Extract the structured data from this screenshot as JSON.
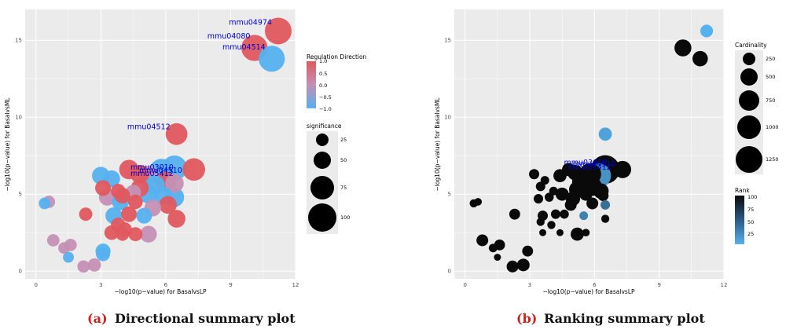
{
  "colors": {
    "panel_bg": "#ebebeb",
    "grid": "#ffffff",
    "red": "#e0595f",
    "blue": "#56b1ef",
    "mid": "#c490b4",
    "caption_red": "#cc2222",
    "rank_dark": "#0a0a0a",
    "rank_light": "#56b1ef",
    "label_blue": "#0000cc"
  },
  "captions": [
    {
      "tag": "(a)",
      "text": "Directional summary plot"
    },
    {
      "tag": "(b)",
      "text": "Ranking summary plot"
    }
  ],
  "legends": {
    "regulation": {
      "title": "Regulation Direction",
      "labels": [
        "1.0",
        "0.5",
        "0.0",
        "−0.5",
        "−1.0"
      ]
    },
    "significance": {
      "title": "significance",
      "labels": [
        "25",
        "50",
        "75",
        "100"
      ]
    },
    "cardinality": {
      "title": "Cardinality",
      "labels": [
        "250",
        "500",
        "750",
        "1000",
        "1250"
      ]
    },
    "rank": {
      "title": "Rank",
      "labels": [
        "100",
        "75",
        "50",
        "25"
      ]
    }
  },
  "chart_data": [
    {
      "type": "scatter",
      "title": "",
      "xlabel": "−log10(p−value) for BasalvsLP",
      "ylabel": "−log10(p−value) for BasalvsML",
      "xlim": [
        -0.5,
        12
      ],
      "ylim": [
        -0.5,
        17
      ],
      "xticks": [
        "0",
        "3",
        "6",
        "9",
        "12"
      ],
      "yticks": [
        "0",
        "5",
        "10",
        "15"
      ],
      "size_by": "significance",
      "color_by": "Regulation Direction",
      "labels": [
        {
          "text": "mmu04974",
          "x": 11.2,
          "y": 15.6
        },
        {
          "text": "mmu04080",
          "x": 10.2,
          "y": 14.7
        },
        {
          "text": "mmu04514",
          "x": 10.9,
          "y": 14.0
        },
        {
          "text": "mmu04512",
          "x": 6.5,
          "y": 8.8
        },
        {
          "text": "mmu03010",
          "x": 5.8,
          "y": 6.8
        },
        {
          "text": "mmu04510",
          "x": 6.2,
          "y": 6.6
        },
        {
          "text": "mmu05412",
          "x": 5.8,
          "y": 6.4
        }
      ],
      "points": [
        {
          "x": 11.2,
          "y": 15.6,
          "s": 100,
          "d": 1.0
        },
        {
          "x": 10.1,
          "y": 14.5,
          "s": 95,
          "d": 1.0
        },
        {
          "x": 10.9,
          "y": 13.8,
          "s": 95,
          "d": -1.0
        },
        {
          "x": 6.5,
          "y": 8.9,
          "s": 60,
          "d": 1.0
        },
        {
          "x": 7.3,
          "y": 6.6,
          "s": 65,
          "d": 1.0
        },
        {
          "x": 6.4,
          "y": 6.7,
          "s": 85,
          "d": -1.0
        },
        {
          "x": 5.8,
          "y": 6.5,
          "s": 80,
          "d": -1.0
        },
        {
          "x": 4.3,
          "y": 6.6,
          "s": 45,
          "d": 1.0
        },
        {
          "x": 4.8,
          "y": 6.3,
          "s": 40,
          "d": 1.0
        },
        {
          "x": 5.2,
          "y": 6.2,
          "s": 45,
          "d": 0.0
        },
        {
          "x": 6.0,
          "y": 5.8,
          "s": 50,
          "d": 1.0
        },
        {
          "x": 5.5,
          "y": 5.6,
          "s": 45,
          "d": -1.0
        },
        {
          "x": 6.4,
          "y": 5.7,
          "s": 40,
          "d": 0.0
        },
        {
          "x": 3.0,
          "y": 6.2,
          "s": 35,
          "d": -1.0
        },
        {
          "x": 3.5,
          "y": 6.0,
          "s": 30,
          "d": -1.0
        },
        {
          "x": 4.8,
          "y": 5.4,
          "s": 35,
          "d": 1.0
        },
        {
          "x": 5.2,
          "y": 5.0,
          "s": 40,
          "d": -1.0
        },
        {
          "x": 4.5,
          "y": 5.1,
          "s": 25,
          "d": 0.0
        },
        {
          "x": 5.9,
          "y": 4.9,
          "s": 35,
          "d": -1.0
        },
        {
          "x": 6.4,
          "y": 4.8,
          "s": 45,
          "d": -1.0
        },
        {
          "x": 3.1,
          "y": 5.4,
          "s": 25,
          "d": 1.0
        },
        {
          "x": 3.8,
          "y": 5.2,
          "s": 20,
          "d": 1.0
        },
        {
          "x": 3.3,
          "y": 4.8,
          "s": 30,
          "d": 0.0
        },
        {
          "x": 4.0,
          "y": 4.9,
          "s": 25,
          "d": 1.0
        },
        {
          "x": 3.9,
          "y": 4.5,
          "s": 30,
          "d": -1.0
        },
        {
          "x": 4.6,
          "y": 4.5,
          "s": 20,
          "d": 1.0
        },
        {
          "x": 6.1,
          "y": 4.3,
          "s": 35,
          "d": 1.0
        },
        {
          "x": 5.4,
          "y": 4.1,
          "s": 30,
          "d": 0.0
        },
        {
          "x": 3.6,
          "y": 3.6,
          "s": 30,
          "d": -1.0
        },
        {
          "x": 4.3,
          "y": 3.7,
          "s": 25,
          "d": 1.0
        },
        {
          "x": 5.0,
          "y": 3.6,
          "s": 25,
          "d": -1.0
        },
        {
          "x": 6.5,
          "y": 3.4,
          "s": 35,
          "d": 1.0
        },
        {
          "x": 2.3,
          "y": 3.7,
          "s": 15,
          "d": 1.0
        },
        {
          "x": 3.8,
          "y": 3.0,
          "s": 20,
          "d": 1.0
        },
        {
          "x": 4.1,
          "y": 2.7,
          "s": 20,
          "d": 1.0
        },
        {
          "x": 3.5,
          "y": 2.5,
          "s": 20,
          "d": 1.0
        },
        {
          "x": 4.0,
          "y": 2.4,
          "s": 15,
          "d": 1.0
        },
        {
          "x": 4.6,
          "y": 2.4,
          "s": 18,
          "d": 1.0
        },
        {
          "x": 5.2,
          "y": 2.4,
          "s": 30,
          "d": 0.0
        },
        {
          "x": 0.4,
          "y": 4.4,
          "s": 10,
          "d": -1.0
        },
        {
          "x": 0.6,
          "y": 4.5,
          "s": 12,
          "d": 0.0
        },
        {
          "x": 0.8,
          "y": 2.0,
          "s": 12,
          "d": 0.0
        },
        {
          "x": 1.3,
          "y": 1.5,
          "s": 10,
          "d": 0.0
        },
        {
          "x": 1.6,
          "y": 1.7,
          "s": 12,
          "d": 0.0
        },
        {
          "x": 1.5,
          "y": 0.9,
          "s": 8,
          "d": -1.0
        },
        {
          "x": 3.1,
          "y": 1.3,
          "s": 22,
          "d": -1.0
        },
        {
          "x": 3.1,
          "y": 1.1,
          "s": 18,
          "d": -1.0
        },
        {
          "x": 2.2,
          "y": 0.3,
          "s": 12,
          "d": 0.0
        },
        {
          "x": 2.7,
          "y": 0.4,
          "s": 15,
          "d": 0.0
        }
      ]
    },
    {
      "type": "scatter",
      "title": "",
      "xlabel": "−log10(p−value) for BasalvsLP",
      "ylabel": "−log10(p−value) for BasalvsML",
      "xlim": [
        -0.5,
        12
      ],
      "ylim": [
        -0.5,
        17
      ],
      "xticks": [
        "0",
        "3",
        "6",
        "9",
        "12"
      ],
      "yticks": [
        "0",
        "5",
        "10",
        "15"
      ],
      "size_by": "Cardinality",
      "color_by": "Rank",
      "labels": [
        {
          "text": "mmu03010",
          "x": 5.8,
          "y": 6.9
        },
        {
          "text": "mmu04510",
          "x": 6.2,
          "y": 6.8
        },
        {
          "text": "mmu05412",
          "x": 6.0,
          "y": 6.6
        }
      ],
      "points": [
        {
          "x": 11.2,
          "y": 15.6,
          "c": 180,
          "r": 1
        },
        {
          "x": 10.1,
          "y": 14.5,
          "c": 380,
          "r": 100
        },
        {
          "x": 10.9,
          "y": 13.8,
          "c": 300,
          "r": 100
        },
        {
          "x": 6.5,
          "y": 8.9,
          "c": 200,
          "r": 10
        },
        {
          "x": 6.5,
          "y": 6.6,
          "c": 1300,
          "r": 100
        },
        {
          "x": 6.2,
          "y": 6.2,
          "c": 900,
          "r": 20
        },
        {
          "x": 7.3,
          "y": 6.6,
          "c": 400,
          "r": 100
        },
        {
          "x": 5.8,
          "y": 6.3,
          "c": 700,
          "r": 100
        },
        {
          "x": 5.4,
          "y": 5.8,
          "c": 500,
          "r": 100
        },
        {
          "x": 5.9,
          "y": 5.5,
          "c": 500,
          "r": 100
        },
        {
          "x": 5.2,
          "y": 5.3,
          "c": 350,
          "r": 100
        },
        {
          "x": 6.3,
          "y": 5.2,
          "c": 300,
          "r": 100
        },
        {
          "x": 4.8,
          "y": 6.6,
          "c": 200,
          "r": 100
        },
        {
          "x": 4.4,
          "y": 6.2,
          "c": 200,
          "r": 100
        },
        {
          "x": 5.1,
          "y": 6.4,
          "c": 300,
          "r": 100
        },
        {
          "x": 5.6,
          "y": 5.0,
          "c": 200,
          "r": 100
        },
        {
          "x": 5.0,
          "y": 4.7,
          "c": 250,
          "r": 100
        },
        {
          "x": 5.9,
          "y": 4.4,
          "c": 150,
          "r": 100
        },
        {
          "x": 4.5,
          "y": 5.0,
          "c": 200,
          "r": 100
        },
        {
          "x": 4.9,
          "y": 4.3,
          "c": 150,
          "r": 100
        },
        {
          "x": 6.4,
          "y": 4.9,
          "c": 120,
          "r": 100
        },
        {
          "x": 6.5,
          "y": 4.3,
          "c": 80,
          "r": 40
        },
        {
          "x": 3.2,
          "y": 6.3,
          "c": 100,
          "r": 100
        },
        {
          "x": 3.5,
          "y": 5.5,
          "c": 80,
          "r": 100
        },
        {
          "x": 3.7,
          "y": 5.9,
          "c": 60,
          "r": 100
        },
        {
          "x": 4.1,
          "y": 5.2,
          "c": 60,
          "r": 100
        },
        {
          "x": 3.4,
          "y": 4.7,
          "c": 80,
          "r": 100
        },
        {
          "x": 3.9,
          "y": 4.8,
          "c": 70,
          "r": 100
        },
        {
          "x": 4.6,
          "y": 3.7,
          "c": 70,
          "r": 100
        },
        {
          "x": 5.5,
          "y": 3.6,
          "c": 60,
          "r": 30
        },
        {
          "x": 6.5,
          "y": 3.4,
          "c": 50,
          "r": 100
        },
        {
          "x": 3.6,
          "y": 3.6,
          "c": 100,
          "r": 100
        },
        {
          "x": 4.2,
          "y": 3.7,
          "c": 80,
          "r": 100
        },
        {
          "x": 3.5,
          "y": 3.2,
          "c": 50,
          "r": 100
        },
        {
          "x": 4.0,
          "y": 3.0,
          "c": 50,
          "r": 100
        },
        {
          "x": 3.6,
          "y": 2.5,
          "c": 30,
          "r": 100
        },
        {
          "x": 4.4,
          "y": 2.5,
          "c": 30,
          "r": 100
        },
        {
          "x": 5.2,
          "y": 2.4,
          "c": 200,
          "r": 100
        },
        {
          "x": 5.6,
          "y": 2.5,
          "c": 40,
          "r": 100
        },
        {
          "x": 2.3,
          "y": 3.7,
          "c": 120,
          "r": 100
        },
        {
          "x": 0.4,
          "y": 4.4,
          "c": 50,
          "r": 100
        },
        {
          "x": 0.6,
          "y": 4.5,
          "c": 40,
          "r": 100
        },
        {
          "x": 0.8,
          "y": 2.0,
          "c": 150,
          "r": 100
        },
        {
          "x": 1.3,
          "y": 1.5,
          "c": 60,
          "r": 100
        },
        {
          "x": 1.6,
          "y": 1.7,
          "c": 120,
          "r": 100
        },
        {
          "x": 1.5,
          "y": 0.9,
          "c": 30,
          "r": 100
        },
        {
          "x": 2.9,
          "y": 1.3,
          "c": 120,
          "r": 100
        },
        {
          "x": 2.2,
          "y": 0.3,
          "c": 150,
          "r": 100
        },
        {
          "x": 2.7,
          "y": 0.4,
          "c": 180,
          "r": 100
        }
      ]
    }
  ]
}
